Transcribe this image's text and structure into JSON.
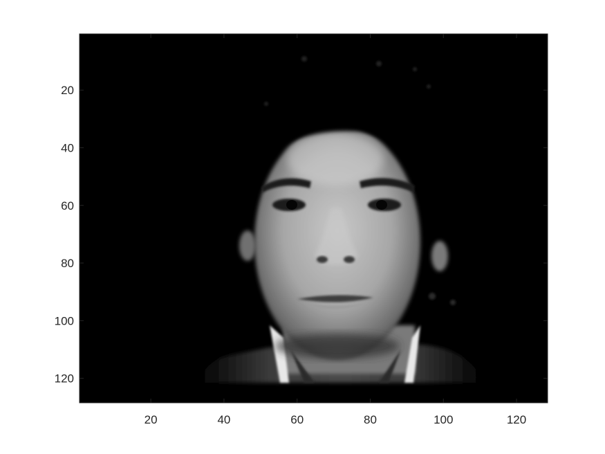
{
  "image": {
    "subject": "grayscale face photograph",
    "colormap": "gray",
    "background_color": "#000000"
  },
  "axes": {
    "xlim": [
      0.5,
      128.5
    ],
    "ylim": [
      0.5,
      128.5
    ],
    "y_direction": "reversed",
    "x_ticks": [
      {
        "value": 20,
        "label": "20"
      },
      {
        "value": 40,
        "label": "40"
      },
      {
        "value": 60,
        "label": "60"
      },
      {
        "value": 80,
        "label": "80"
      },
      {
        "value": 100,
        "label": "100"
      },
      {
        "value": 120,
        "label": "120"
      }
    ],
    "y_ticks": [
      {
        "value": 20,
        "label": "20"
      },
      {
        "value": 40,
        "label": "40"
      },
      {
        "value": 60,
        "label": "60"
      },
      {
        "value": 80,
        "label": "80"
      },
      {
        "value": 100,
        "label": "100"
      },
      {
        "value": 120,
        "label": "120"
      }
    ],
    "grid": false,
    "box": true
  }
}
